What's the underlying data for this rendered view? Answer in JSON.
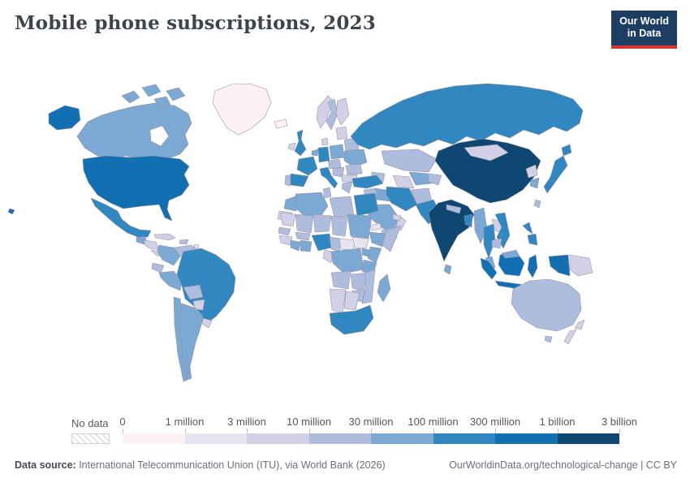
{
  "header": {
    "title": "Mobile phone subscriptions, 2023",
    "logo_line1": "Our World",
    "logo_line2": "in Data"
  },
  "legend": {
    "no_data_label": "No data"
  },
  "footer": {
    "source_label": "Data source:",
    "source_text": " International Telecommunication Union (ITU), via World Bank (2026)",
    "right_text": "OurWorldinData.org/technological-change | CC BY"
  },
  "colors": {
    "logo_bg": "#1d3d63",
    "logo_accent": "#d8352e",
    "ocean": "#ffffff",
    "border": "#978fa5",
    "default_land": "#e3e0ea"
  },
  "chart_data": {
    "type": "heatmap",
    "subtype": "world-choropleth-map",
    "title": "Mobile phone subscriptions, 2023",
    "unit": "mobile phone subscriptions",
    "legend_position": "bottom",
    "tick_labels": [
      "0",
      "1 million",
      "3 million",
      "10 million",
      "30 million",
      "100 million",
      "300 million",
      "1 billion",
      "3 billion"
    ],
    "bins": [
      {
        "range": "0-1 million",
        "color": "#fdf0f6"
      },
      {
        "range": "1-3 million",
        "color": "#e7e3f0"
      },
      {
        "range": "3-10 million",
        "color": "#d2d0e6"
      },
      {
        "range": "10-30 million",
        "color": "#aebcdd"
      },
      {
        "range": "30-100 million",
        "color": "#7ca9d3"
      },
      {
        "range": "100-300 million",
        "color": "#3187c0"
      },
      {
        "range": "300 million-1 billion",
        "color": "#1270b2"
      },
      {
        "range": "1-3 billion",
        "color": "#0e4771"
      }
    ],
    "no_data_pattern": "diagonal-hatch",
    "regions": {
      "greenland": 0,
      "canada": 4,
      "united-states": 6,
      "mexico": 5,
      "guatemala": 4,
      "honduras-nicaragua": 2,
      "costa-rica-panama": 2,
      "cuba": 2,
      "hispaniola": 3,
      "lesser-antilles": 1,
      "colombia": 4,
      "venezuela": 3,
      "guyana": 0,
      "suriname": 0,
      "french-guiana": 0,
      "ecuador": 3,
      "peru": 4,
      "brazil": 5,
      "bolivia": 3,
      "paraguay": 2,
      "uruguay": 2,
      "chile": 4,
      "argentina": 4,
      "iceland": 0,
      "ireland": 2,
      "united-kingdom": 5,
      "portugal": 3,
      "spain": 5,
      "france": 5,
      "benelux": 4,
      "germany": 5,
      "denmark": 2,
      "norway": 2,
      "sweden": 3,
      "finland": 2,
      "baltics": 2,
      "poland": 4,
      "belarus": 3,
      "ukraine": 4,
      "czechia-austria": 3,
      "hungary-croatia": 3,
      "romania": 3,
      "serbia-bulgaria": 2,
      "greece": 3,
      "italy": 5,
      "russia": 5,
      "kazakhstan": 3,
      "turkmenistan": 2,
      "uzbekistan": 4,
      "kyrgyzstan-tajikistan": 3,
      "caucasus": 3,
      "turkey": 5,
      "syria": 3,
      "jordan-israel": 3,
      "iraq": 4,
      "iran": 5,
      "saudi-arabia": 4,
      "yemen": 3,
      "oman": 2,
      "uae": 2,
      "afghanistan": 3,
      "pakistan": 5,
      "india": 7,
      "nepal": 3,
      "bangladesh": 5,
      "sri-lanka": 4,
      "myanmar": 4,
      "thailand": 5,
      "laos": 2,
      "vietnam": 5,
      "cambodia": 3,
      "malaysia": 4,
      "china": 7,
      "taiwan": 3,
      "mongolia": 2,
      "north-korea": 2,
      "south-korea": 4,
      "japan": 5,
      "philippines": 5,
      "indonesia": 6,
      "papua-new-guinea": 2,
      "australia": 3,
      "new-zealand": 2,
      "morocco": 4,
      "western-sahara": 2,
      "algeria": 4,
      "tunisia": 3,
      "libya": 3,
      "egypt": 5,
      "mauritania": 2,
      "mali": 3,
      "niger": 3,
      "chad": 3,
      "sudan": 4,
      "eritrea": 1,
      "ethiopia": 4,
      "somalia": 3,
      "senegal": 3,
      "guinea": 2,
      "ivory-coast": 4,
      "ghana": 4,
      "burkina-faso": 3,
      "nigeria": 5,
      "cameroon": 3,
      "central-african-republic": 1,
      "south-sudan": 1,
      "drc": 4,
      "congo-gabon": 2,
      "uganda": 4,
      "kenya": 4,
      "tanzania": 4,
      "angola": 3,
      "zambia": 3,
      "zimbabwe": 3,
      "mozambique": 3,
      "namibia": 2,
      "botswana": 2,
      "south-africa": 5,
      "madagascar": 4
    }
  }
}
